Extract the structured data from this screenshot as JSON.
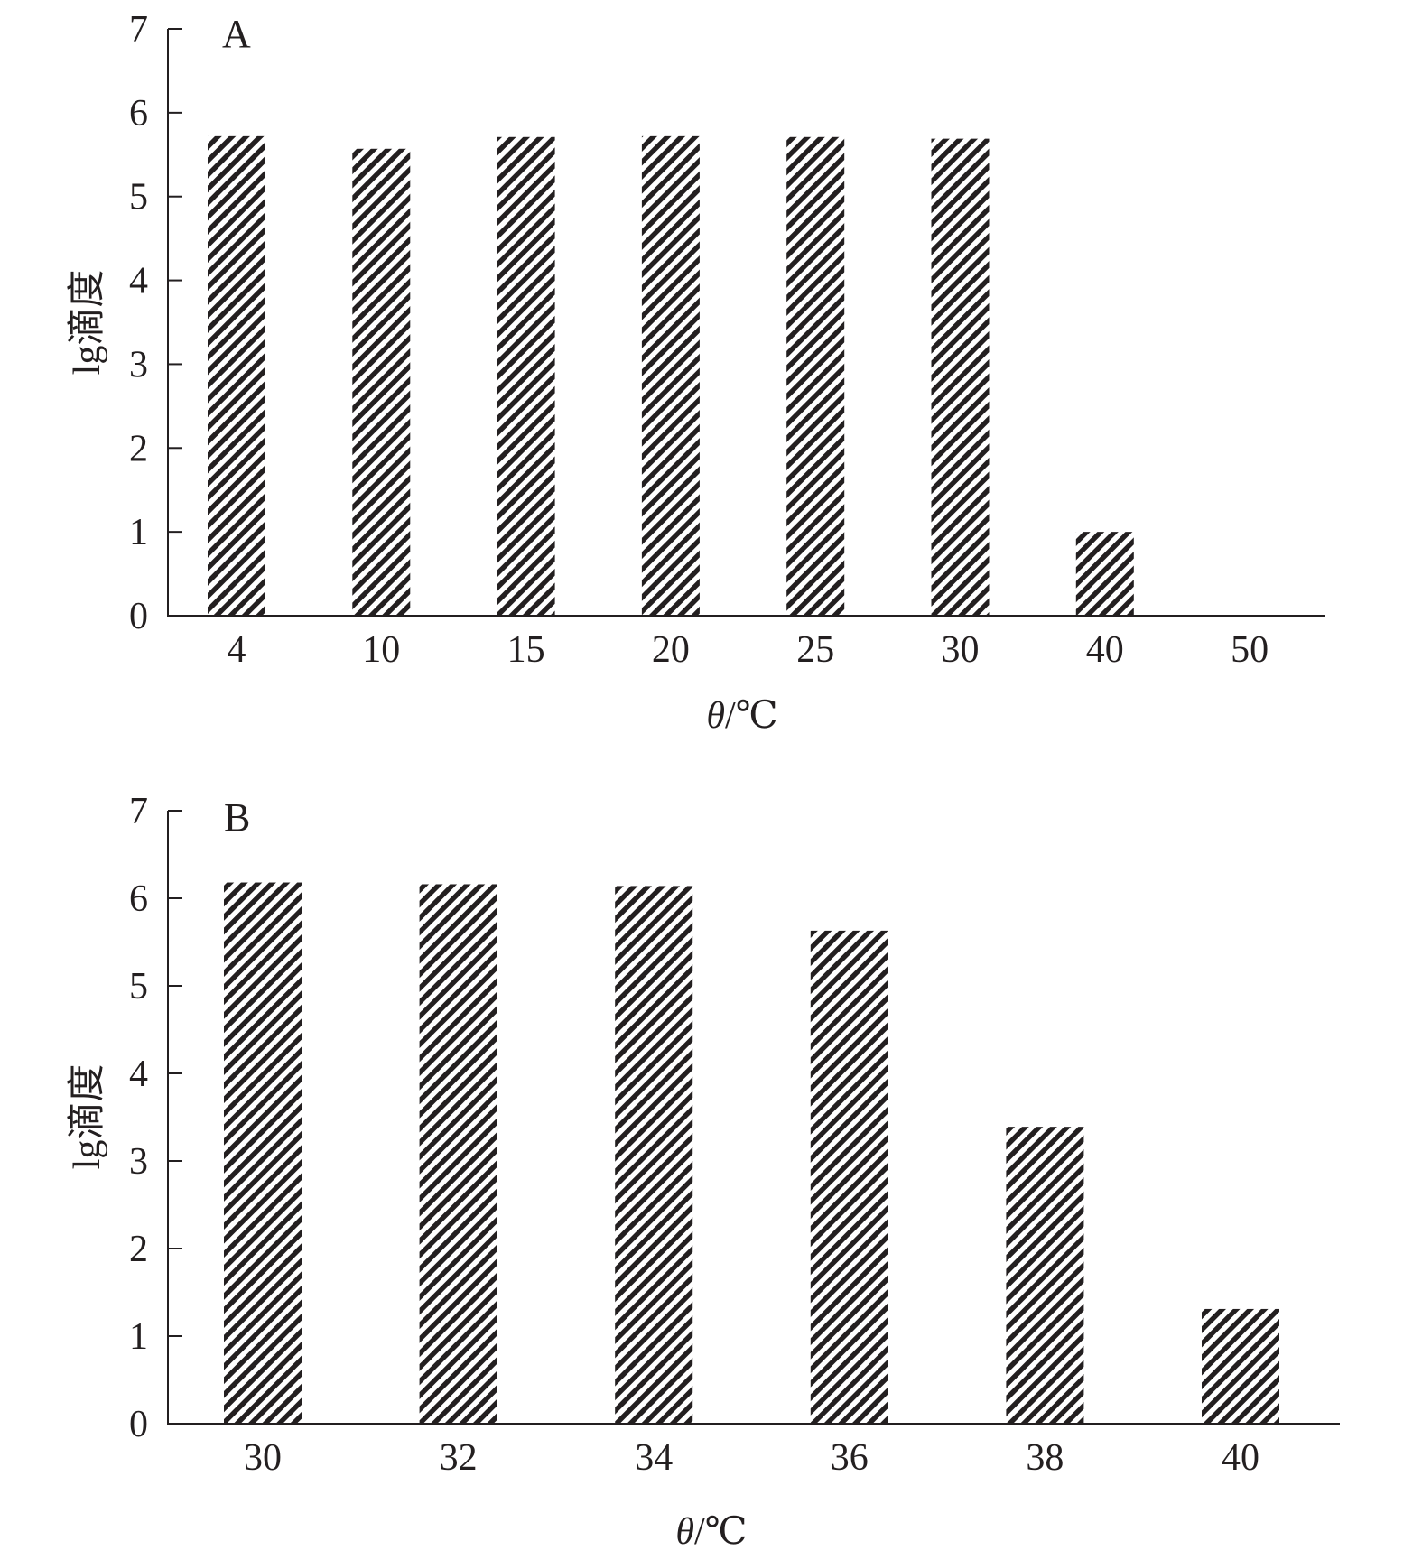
{
  "figure": {
    "colors": {
      "ink": "#231f20",
      "background": "#ffffff"
    }
  },
  "chart_data": [
    {
      "type": "bar",
      "panel_label": "A",
      "categories": [
        "4",
        "10",
        "15",
        "20",
        "25",
        "30",
        "40",
        "50"
      ],
      "values": [
        5.72,
        5.57,
        5.71,
        5.72,
        5.71,
        5.69,
        1.0,
        0
      ],
      "xlabel_symbol": "θ",
      "xlabel_unit": "/℃",
      "ylabel": "lg滴度",
      "ylim": [
        0,
        7
      ],
      "yticks": [
        "0",
        "1",
        "2",
        "3",
        "4",
        "5",
        "6",
        "7"
      ],
      "bar_fill": "diagonal-hatch",
      "grid": false
    },
    {
      "type": "bar",
      "panel_label": "B",
      "categories": [
        "30",
        "32",
        "34",
        "36",
        "38",
        "40"
      ],
      "values": [
        6.18,
        6.16,
        6.14,
        5.63,
        3.39,
        1.31
      ],
      "xlabel_symbol": "θ",
      "xlabel_unit": "/℃",
      "ylabel": "lg滴度",
      "ylim": [
        0,
        7
      ],
      "yticks": [
        "0",
        "1",
        "2",
        "3",
        "4",
        "5",
        "6",
        "7"
      ],
      "bar_fill": "diagonal-hatch",
      "grid": false
    }
  ]
}
